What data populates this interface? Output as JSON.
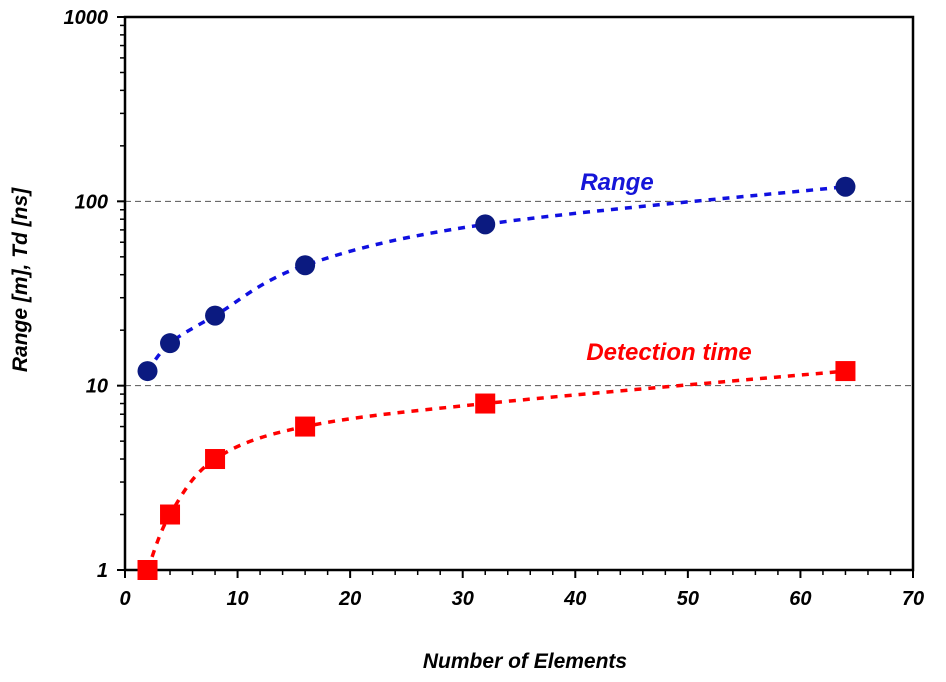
{
  "chart_data": {
    "type": "line",
    "xlabel": "Number of Elements",
    "ylabel": "Range [m], Td [ns]",
    "xlim": [
      0,
      70
    ],
    "ylim": [
      1,
      1000
    ],
    "y_scale": "log",
    "x_ticks": [
      0,
      10,
      20,
      30,
      40,
      50,
      60,
      70
    ],
    "x_tick_labels": [
      "0",
      "10",
      "20",
      "30",
      "40",
      "50",
      "60",
      "70"
    ],
    "y_ticks": [
      1,
      10,
      100,
      1000
    ],
    "y_tick_labels": [
      "1",
      "10",
      "100",
      "1000"
    ],
    "gridlines_y": [
      10,
      100
    ],
    "line_style": "dotted",
    "x": [
      2,
      4,
      8,
      16,
      32,
      64
    ],
    "series": [
      {
        "name": "Range",
        "marker": "circle",
        "color": "#0b1a80",
        "line_color": "#1010e0",
        "label_color": "#1515d8",
        "values": [
          12,
          17,
          24,
          45,
          75,
          120
        ]
      },
      {
        "name": "Detection time",
        "marker": "square",
        "color": "#ff0000",
        "line_color": "#ff0000",
        "label_color": "#ff0000",
        "values": [
          1,
          2,
          4,
          6,
          8,
          12
        ]
      }
    ]
  }
}
